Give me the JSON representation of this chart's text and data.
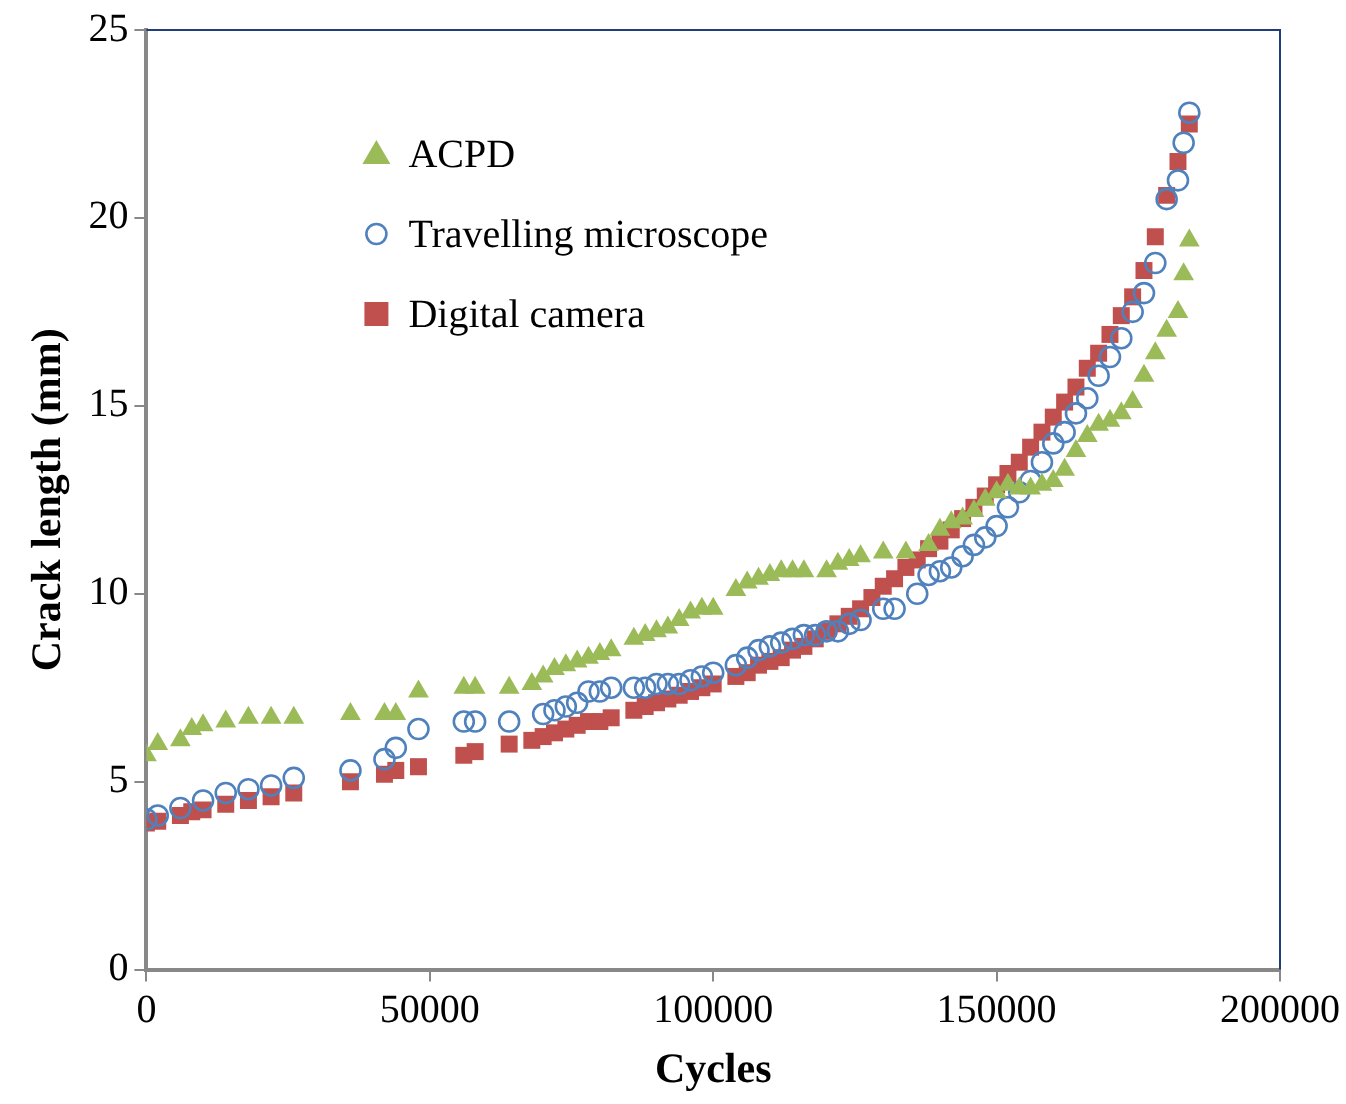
{
  "chart_data": {
    "type": "scatter",
    "xlabel": "Cycles",
    "ylabel": "Crack length (mm)",
    "xlim": [
      0,
      200000
    ],
    "xticks": [
      0,
      50000,
      100000,
      150000,
      200000
    ],
    "ylim": [
      0,
      25
    ],
    "yticks": [
      0,
      5,
      10,
      15,
      20,
      25
    ],
    "grid": false,
    "legend": "top left",
    "series": [
      {
        "name": "ACPD",
        "color": "#9bbb59",
        "marker": "triangle",
        "x": [
          0,
          2000,
          6000,
          8000,
          10000,
          14000,
          18000,
          22000,
          26000,
          36000,
          42000,
          44000,
          48000,
          56000,
          58000,
          64000,
          68000,
          70000,
          72000,
          74000,
          76000,
          78000,
          80000,
          82000,
          86000,
          88000,
          90000,
          92000,
          94000,
          96000,
          98000,
          100000,
          104000,
          106000,
          108000,
          110000,
          112000,
          114000,
          116000,
          120000,
          122000,
          124000,
          126000,
          130000,
          134000,
          138000,
          140000,
          142000,
          144000,
          146000,
          148000,
          150000,
          152000,
          154000,
          156000,
          158000,
          160000,
          162000,
          164000,
          166000,
          168000,
          170000,
          172000,
          174000,
          176000,
          178000,
          180000,
          182000,
          183000,
          184000
        ],
        "values": [
          5.7,
          6.0,
          6.1,
          6.4,
          6.5,
          6.6,
          6.7,
          6.7,
          6.7,
          6.8,
          6.8,
          6.8,
          7.4,
          7.5,
          7.5,
          7.5,
          7.6,
          7.8,
          8.0,
          8.1,
          8.2,
          8.3,
          8.4,
          8.5,
          8.8,
          8.9,
          9.0,
          9.1,
          9.3,
          9.5,
          9.6,
          9.6,
          10.1,
          10.3,
          10.4,
          10.5,
          10.6,
          10.6,
          10.6,
          10.6,
          10.8,
          10.9,
          11.0,
          11.1,
          11.1,
          11.3,
          11.7,
          11.9,
          12.0,
          12.2,
          12.5,
          12.7,
          12.9,
          12.8,
          12.8,
          12.9,
          13.0,
          13.3,
          13.8,
          14.2,
          14.5,
          14.6,
          14.8,
          15.1,
          15.8,
          16.4,
          17.0,
          17.5,
          18.5,
          19.4
        ]
      },
      {
        "name": "Travelling microscope",
        "color": "#4f81bd",
        "marker": "circle",
        "x": [
          0,
          2000,
          6000,
          10000,
          14000,
          18000,
          22000,
          26000,
          36000,
          42000,
          44000,
          48000,
          56000,
          58000,
          64000,
          70000,
          72000,
          74000,
          76000,
          78000,
          80000,
          82000,
          86000,
          88000,
          90000,
          92000,
          94000,
          96000,
          98000,
          100000,
          104000,
          106000,
          108000,
          110000,
          112000,
          114000,
          116000,
          118000,
          120000,
          122000,
          124000,
          126000,
          130000,
          132000,
          136000,
          138000,
          140000,
          142000,
          144000,
          146000,
          148000,
          150000,
          152000,
          154000,
          156000,
          158000,
          160000,
          162000,
          164000,
          166000,
          168000,
          170000,
          172000,
          174000,
          176000,
          178000,
          180000,
          182000,
          183000,
          184000
        ],
        "values": [
          4.0,
          4.1,
          4.3,
          4.5,
          4.7,
          4.8,
          4.9,
          5.1,
          5.3,
          5.6,
          5.9,
          6.4,
          6.6,
          6.6,
          6.6,
          6.8,
          6.9,
          7.0,
          7.1,
          7.4,
          7.4,
          7.5,
          7.5,
          7.5,
          7.6,
          7.6,
          7.6,
          7.7,
          7.8,
          7.9,
          8.1,
          8.3,
          8.5,
          8.6,
          8.7,
          8.8,
          8.9,
          8.9,
          9.0,
          9.0,
          9.2,
          9.3,
          9.6,
          9.6,
          10.0,
          10.5,
          10.6,
          10.7,
          11.0,
          11.3,
          11.5,
          11.8,
          12.3,
          12.7,
          13.0,
          13.5,
          14.0,
          14.3,
          14.8,
          15.2,
          15.8,
          16.3,
          16.8,
          17.5,
          18.0,
          18.8,
          20.5,
          21.0,
          22.0,
          22.8
        ]
      },
      {
        "name": "Digital camera",
        "color": "#c0504d",
        "marker": "square",
        "x": [
          0,
          2000,
          6000,
          8000,
          10000,
          14000,
          18000,
          22000,
          26000,
          36000,
          42000,
          44000,
          48000,
          56000,
          58000,
          64000,
          68000,
          70000,
          72000,
          74000,
          76000,
          78000,
          80000,
          82000,
          86000,
          88000,
          90000,
          92000,
          94000,
          96000,
          98000,
          100000,
          104000,
          106000,
          108000,
          110000,
          112000,
          114000,
          116000,
          118000,
          120000,
          122000,
          124000,
          126000,
          128000,
          130000,
          132000,
          134000,
          136000,
          138000,
          140000,
          142000,
          144000,
          146000,
          148000,
          150000,
          152000,
          154000,
          156000,
          158000,
          160000,
          162000,
          164000,
          166000,
          168000,
          170000,
          172000,
          174000,
          176000,
          178000,
          180000,
          182000,
          184000
        ],
        "values": [
          3.9,
          3.95,
          4.1,
          4.2,
          4.25,
          4.4,
          4.5,
          4.6,
          4.7,
          5.0,
          5.2,
          5.3,
          5.4,
          5.7,
          5.8,
          6.0,
          6.1,
          6.2,
          6.3,
          6.4,
          6.5,
          6.6,
          6.6,
          6.7,
          6.9,
          7.0,
          7.1,
          7.2,
          7.3,
          7.4,
          7.5,
          7.6,
          7.8,
          7.9,
          8.1,
          8.2,
          8.3,
          8.5,
          8.6,
          8.8,
          9.0,
          9.2,
          9.4,
          9.6,
          9.9,
          10.2,
          10.4,
          10.7,
          10.9,
          11.2,
          11.4,
          11.7,
          12.0,
          12.3,
          12.6,
          12.9,
          13.2,
          13.5,
          13.9,
          14.3,
          14.7,
          15.1,
          15.5,
          16.0,
          16.4,
          16.9,
          17.4,
          17.9,
          18.6,
          19.5,
          20.6,
          21.5,
          22.5
        ]
      }
    ]
  }
}
